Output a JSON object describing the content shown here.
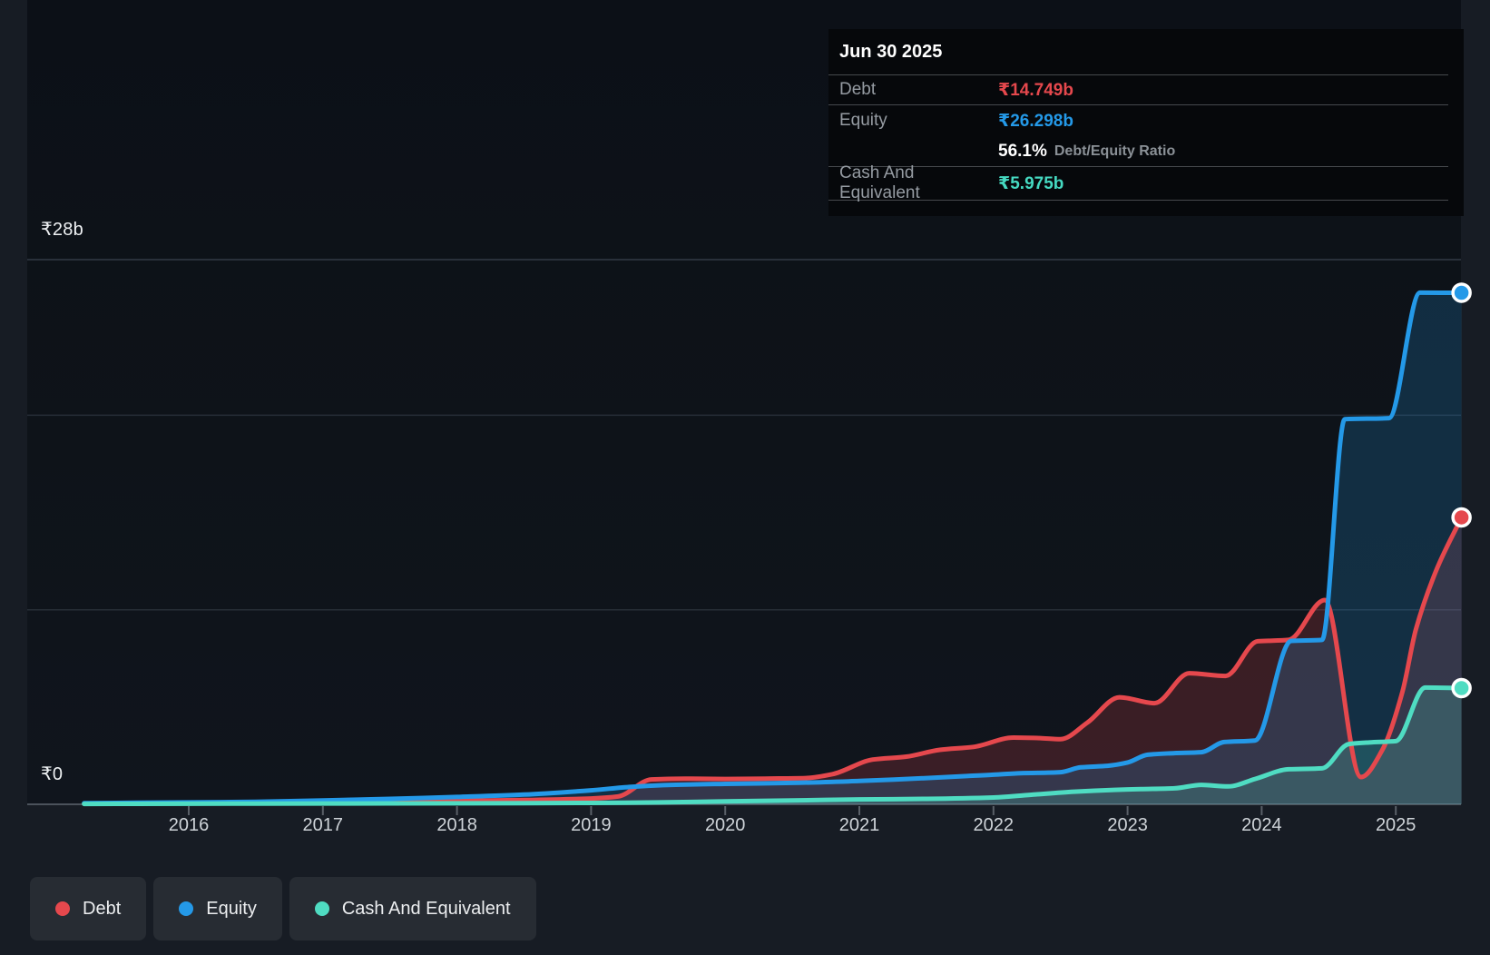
{
  "page": {
    "background": "#171c24",
    "plot_background": "#0e1319"
  },
  "tooltip": {
    "date": "Jun 30 2025",
    "debt_label": "Debt",
    "debt_value": "₹14.749b",
    "equity_label": "Equity",
    "equity_value": "₹26.298b",
    "ratio_bold": "56.1%",
    "ratio_label": "Debt/Equity Ratio",
    "cash_label": "Cash And Equivalent",
    "cash_value": "₹5.975b",
    "debt_color": "#e5484d",
    "equity_color": "#2499e8",
    "cash_color": "#45d9c1"
  },
  "y_axis": {
    "top_label": "₹28b",
    "zero_label": "₹0"
  },
  "x_axis": {
    "years": [
      "2016",
      "2017",
      "2018",
      "2019",
      "2020",
      "2021",
      "2022",
      "2023",
      "2024",
      "2025"
    ]
  },
  "legend": [
    {
      "label": "Debt",
      "color": "#e5484d"
    },
    {
      "label": "Equity",
      "color": "#2499e8"
    },
    {
      "label": "Cash And Equivalent",
      "color": "#4fdcc2"
    }
  ],
  "chart_data": {
    "type": "area",
    "x_unit": "decimal_year",
    "x_range": [
      2015.22,
      2025.5
    ],
    "ylim": [
      0,
      28
    ],
    "y_currency": "₹ billions",
    "gridline_values": [
      28,
      20,
      10,
      0
    ],
    "x_ticks": [
      2016,
      2017,
      2018,
      2019,
      2020,
      2021,
      2022,
      2023,
      2024,
      2025
    ],
    "legend_position": "bottom-left",
    "series": [
      {
        "name": "Debt",
        "color": "#e5484d",
        "fill": "rgba(229,72,77,0.20)",
        "end_value": 14.749,
        "points": [
          [
            2015.22,
            0.03
          ],
          [
            2016,
            0.06
          ],
          [
            2016.5,
            0.08
          ],
          [
            2017,
            0.1
          ],
          [
            2017.5,
            0.14
          ],
          [
            2018,
            0.18
          ],
          [
            2018.5,
            0.22
          ],
          [
            2019,
            0.3
          ],
          [
            2019.2,
            0.4
          ],
          [
            2019.45,
            1.28
          ],
          [
            2019.7,
            1.32
          ],
          [
            2020,
            1.3
          ],
          [
            2020.3,
            1.32
          ],
          [
            2020.6,
            1.35
          ],
          [
            2020.8,
            1.55
          ],
          [
            2021.1,
            2.3
          ],
          [
            2021.35,
            2.45
          ],
          [
            2021.6,
            2.8
          ],
          [
            2021.85,
            2.95
          ],
          [
            2022.15,
            3.43
          ],
          [
            2022.35,
            3.4
          ],
          [
            2022.5,
            3.35
          ],
          [
            2022.7,
            4.2
          ],
          [
            2022.94,
            5.5
          ],
          [
            2023.2,
            5.2
          ],
          [
            2023.46,
            6.74
          ],
          [
            2023.73,
            6.6
          ],
          [
            2023.97,
            8.38
          ],
          [
            2024.2,
            8.45
          ],
          [
            2024.47,
            10.5
          ],
          [
            2024.74,
            1.4
          ],
          [
            2024.9,
            2.8
          ],
          [
            2025.05,
            5.8
          ],
          [
            2025.15,
            9.0
          ],
          [
            2025.3,
            12.0
          ],
          [
            2025.49,
            14.749
          ]
        ]
      },
      {
        "name": "Equity",
        "color": "#2499e8",
        "fill": "rgba(36,153,232,0.20)",
        "end_value": 26.298,
        "points": [
          [
            2015.22,
            0.06
          ],
          [
            2016,
            0.1
          ],
          [
            2016.5,
            0.13
          ],
          [
            2017,
            0.2
          ],
          [
            2017.5,
            0.28
          ],
          [
            2018,
            0.38
          ],
          [
            2018.5,
            0.5
          ],
          [
            2019,
            0.72
          ],
          [
            2019.3,
            0.9
          ],
          [
            2019.6,
            1.0
          ],
          [
            2020,
            1.05
          ],
          [
            2020.5,
            1.1
          ],
          [
            2021,
            1.2
          ],
          [
            2021.5,
            1.35
          ],
          [
            2021.8,
            1.45
          ],
          [
            2022,
            1.52
          ],
          [
            2022.2,
            1.6
          ],
          [
            2022.5,
            1.65
          ],
          [
            2022.65,
            1.9
          ],
          [
            2022.85,
            1.98
          ],
          [
            2023,
            2.15
          ],
          [
            2023.15,
            2.55
          ],
          [
            2023.35,
            2.63
          ],
          [
            2023.55,
            2.68
          ],
          [
            2023.72,
            3.2
          ],
          [
            2023.95,
            3.28
          ],
          [
            2024.22,
            8.4
          ],
          [
            2024.45,
            8.45
          ],
          [
            2024.62,
            19.8
          ],
          [
            2024.95,
            19.85
          ],
          [
            2025.18,
            26.3
          ],
          [
            2025.49,
            26.298
          ]
        ]
      },
      {
        "name": "Cash And Equivalent",
        "color": "#4fdcc2",
        "fill": "rgba(79,220,194,0.20)",
        "end_value": 5.975,
        "points": [
          [
            2015.22,
            0.02
          ],
          [
            2016,
            0.03
          ],
          [
            2017,
            0.04
          ],
          [
            2018,
            0.05
          ],
          [
            2019,
            0.07
          ],
          [
            2019.5,
            0.1
          ],
          [
            2020,
            0.15
          ],
          [
            2020.5,
            0.2
          ],
          [
            2021,
            0.25
          ],
          [
            2021.5,
            0.28
          ],
          [
            2022,
            0.35
          ],
          [
            2022.3,
            0.5
          ],
          [
            2022.6,
            0.65
          ],
          [
            2022.9,
            0.74
          ],
          [
            2023.1,
            0.78
          ],
          [
            2023.35,
            0.82
          ],
          [
            2023.55,
            1.0
          ],
          [
            2023.75,
            0.92
          ],
          [
            2023.95,
            1.3
          ],
          [
            2024.2,
            1.8
          ],
          [
            2024.45,
            1.85
          ],
          [
            2024.65,
            3.1
          ],
          [
            2024.8,
            3.18
          ],
          [
            2025,
            3.25
          ],
          [
            2025.22,
            6.0
          ],
          [
            2025.49,
            5.975
          ]
        ]
      }
    ]
  }
}
